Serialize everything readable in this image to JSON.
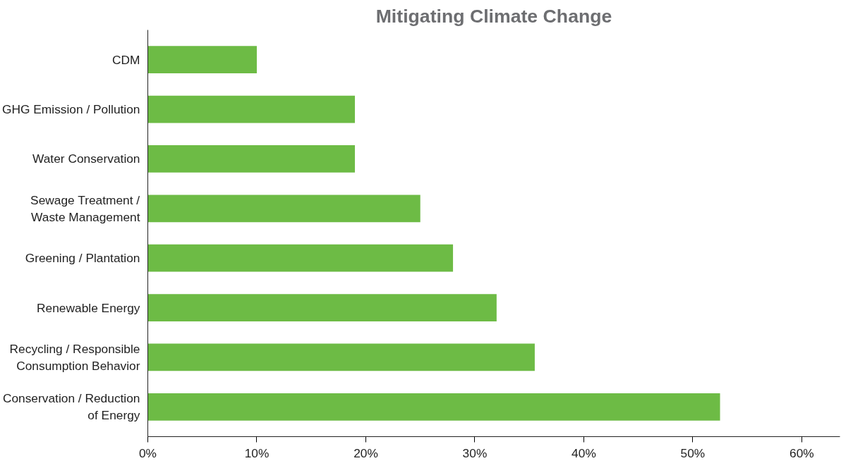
{
  "chart_data": {
    "type": "bar",
    "orientation": "horizontal",
    "title": "Mitigating Climate Change",
    "categories": [
      "CDM",
      "GHG Emission / Pollution",
      "Water Conservation",
      "Sewage Treatment /\nWaste Management",
      "Greening / Plantation",
      "Renewable Energy",
      "Recycling / Responsible\nConsumption Behavior",
      "Conservation / Reduction\nof Energy"
    ],
    "values": [
      10,
      19,
      19,
      25,
      28,
      32,
      35.5,
      52.5
    ],
    "color": "#6dbb45",
    "xlim": [
      0,
      63.5
    ],
    "xticks": [
      {
        "value": 0,
        "label": "0%"
      },
      {
        "value": 10,
        "label": "10%"
      },
      {
        "value": 20,
        "label": "20%"
      },
      {
        "value": 30,
        "label": "30%"
      },
      {
        "value": 40,
        "label": "40%"
      },
      {
        "value": 50,
        "label": "50%"
      },
      {
        "value": 60,
        "label": "60%"
      }
    ],
    "grid": false
  }
}
